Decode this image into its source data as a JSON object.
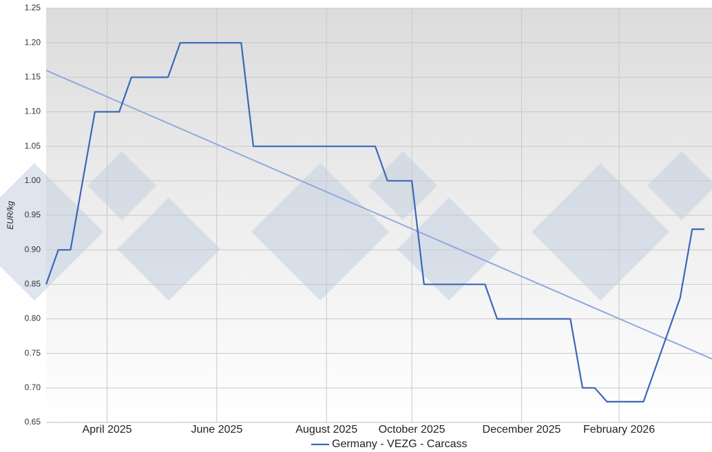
{
  "chart_data": {
    "type": "line",
    "y_label": "EUR/kg",
    "categories": [
      null,
      null,
      null,
      null,
      null,
      "April 2025",
      null,
      null,
      null,
      null,
      null,
      null,
      null,
      null,
      "June 2025",
      null,
      null,
      null,
      null,
      null,
      null,
      null,
      null,
      "August 2025",
      null,
      null,
      null,
      null,
      null,
      null,
      "October 2025",
      null,
      null,
      null,
      null,
      null,
      null,
      null,
      null,
      "December 2025",
      null,
      null,
      null,
      null,
      null,
      null,
      null,
      "February 2026",
      null,
      null,
      null,
      null,
      null,
      null,
      null
    ],
    "series": [
      {
        "name": "Germany - VEZG - Carcass",
        "color": "#3a67b8",
        "values": [
          0.85,
          0.9,
          0.9,
          1.0,
          1.1,
          1.1,
          1.1,
          1.15,
          1.15,
          1.15,
          1.15,
          1.2,
          1.2,
          1.2,
          1.2,
          1.2,
          1.2,
          1.05,
          1.05,
          1.05,
          1.05,
          1.05,
          1.05,
          1.05,
          1.05,
          1.05,
          1.05,
          1.05,
          1.0,
          1.0,
          1.0,
          0.85,
          0.85,
          0.85,
          0.85,
          0.85,
          0.85,
          0.8,
          0.8,
          0.8,
          0.8,
          0.8,
          0.8,
          0.8,
          0.7,
          0.7,
          0.68,
          0.68,
          0.68,
          0.68,
          0.73,
          0.78,
          0.83,
          0.93,
          0.93
        ]
      }
    ],
    "trendline": {
      "color": "#8fa9dc",
      "values": [
        1.16,
        0.742
      ]
    },
    "ylim": [
      0.65,
      1.25
    ],
    "yticks": [
      0.65,
      {
        "value": 0.7,
        "label": "0.70"
      },
      0.75,
      {
        "value": 0.8,
        "label": "0.80"
      },
      0.85,
      {
        "value": 0.9,
        "label": "0.90"
      },
      0.95,
      {
        "value": 1.0,
        "label": "1.00"
      },
      1.05,
      {
        "value": 1.1,
        "label": "1.10"
      },
      1.15,
      {
        "value": 1.2,
        "label": "1.20"
      },
      1.25
    ],
    "grid": true,
    "legend": "bottom"
  }
}
